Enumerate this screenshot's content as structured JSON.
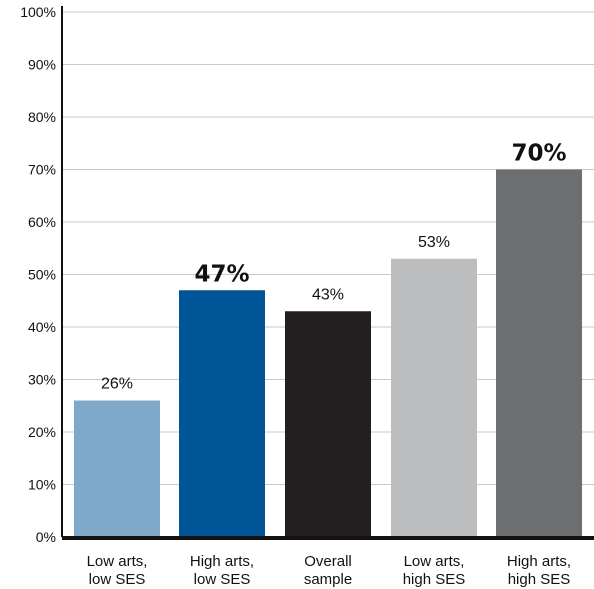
{
  "chart_data": {
    "type": "bar",
    "categories": [
      [
        "Low arts,",
        "low SES"
      ],
      [
        "High arts,",
        "low SES"
      ],
      [
        "Overall",
        "sample"
      ],
      [
        "Low arts,",
        "high SES"
      ],
      [
        "High arts,",
        "high SES"
      ]
    ],
    "values": [
      26,
      47,
      43,
      53,
      70
    ],
    "value_labels": [
      "26%",
      "47%",
      "43%",
      "53%",
      "70%"
    ],
    "value_label_emphasis": [
      false,
      true,
      false,
      false,
      true
    ],
    "colors": [
      "#7fa9cb",
      "#005596",
      "#231f20",
      "#bcbdbf",
      "#6d6e70"
    ],
    "y_ticks": [
      0,
      10,
      20,
      30,
      40,
      50,
      60,
      70,
      80,
      90,
      100
    ],
    "y_tick_labels": [
      "0%",
      "10%",
      "20%",
      "30%",
      "40%",
      "50%",
      "60%",
      "70%",
      "80%",
      "90%",
      "100%"
    ],
    "ylim": [
      0,
      100
    ],
    "grid": true,
    "title": "",
    "xlabel": "",
    "ylabel": "",
    "gridline_color": "#c8c8c8",
    "axis_color": "#111111"
  }
}
